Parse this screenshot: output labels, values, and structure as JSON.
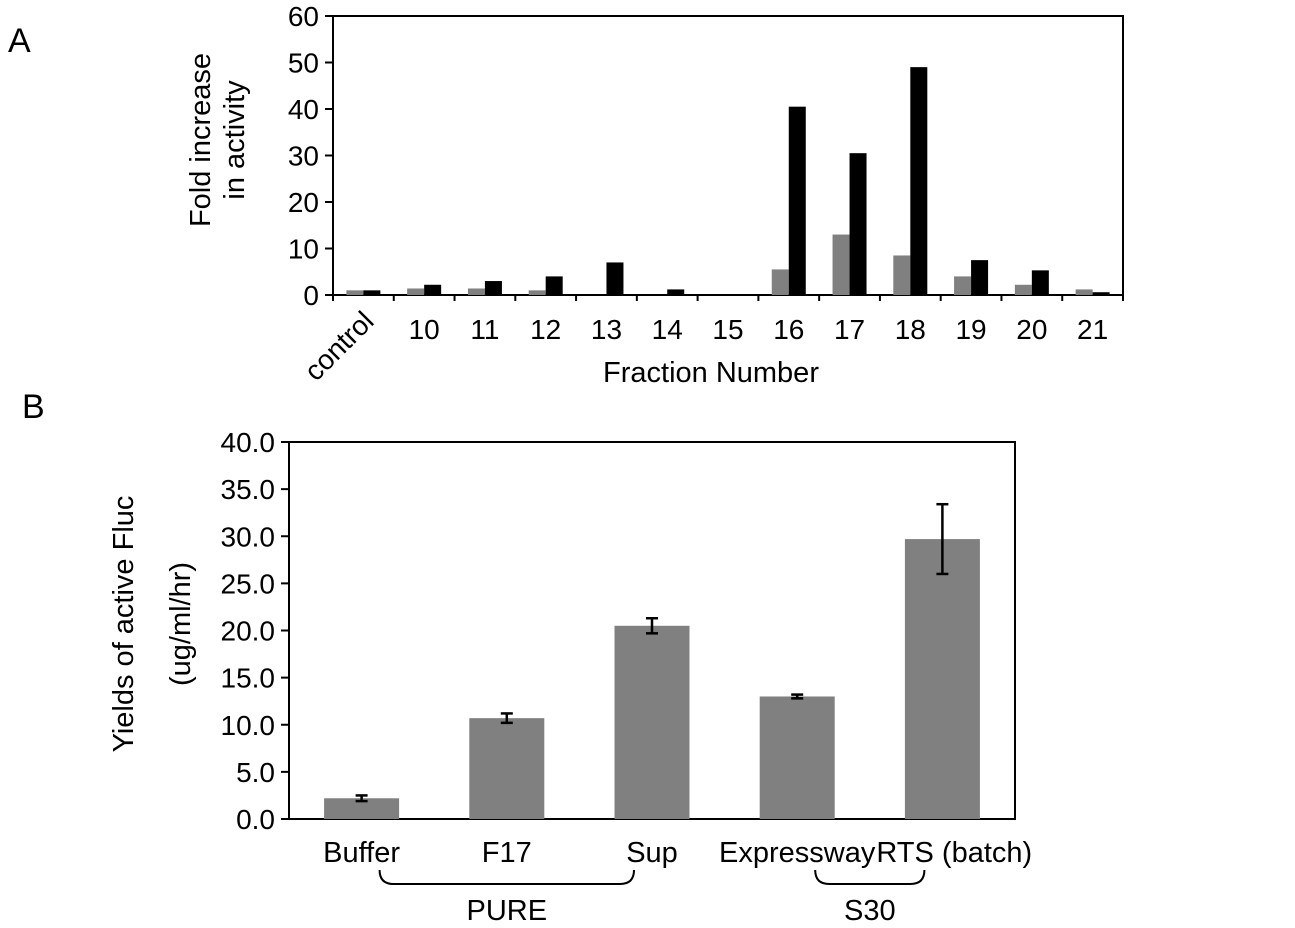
{
  "panel_labels": {
    "a": "A",
    "b": "B"
  },
  "chart_data": [
    {
      "type": "bar",
      "panel": "A",
      "title": "",
      "ylabel_line1": "Fold increase",
      "ylabel_line2": "in activity",
      "xlabel": "Fraction Number",
      "ylim": [
        0,
        60
      ],
      "yticks": [
        "0",
        "10",
        "20",
        "30",
        "40",
        "50",
        "60"
      ],
      "categories": [
        "control",
        "10",
        "11",
        "12",
        "13",
        "14",
        "15",
        "16",
        "17",
        "18",
        "19",
        "20",
        "21"
      ],
      "series": [
        {
          "color": "#808080",
          "values": [
            1,
            1.4,
            1.4,
            1,
            0,
            0,
            0,
            5.5,
            13,
            8.5,
            4,
            2.2,
            1.2
          ]
        },
        {
          "color": "#000000",
          "values": [
            1,
            2.2,
            3,
            4,
            7,
            1.2,
            0,
            40.5,
            30.5,
            49,
            7.5,
            5.3,
            0.6
          ]
        }
      ],
      "grid": false
    },
    {
      "type": "bar",
      "panel": "B",
      "title": "",
      "ylabel_line1": "Yields of active Fluc",
      "ylabel_line2": "(ug/ml/hr)",
      "xlabel": "",
      "ylim": [
        0,
        40
      ],
      "yticks": [
        "0.0",
        "5.0",
        "10.0",
        "15.0",
        "20.0",
        "25.0",
        "30.0",
        "35.0",
        "40.0"
      ],
      "categories": [
        "Buffer",
        "F17",
        "Sup",
        "Expressway",
        "RTS (batch)"
      ],
      "values": [
        2.2,
        10.7,
        20.5,
        13.0,
        29.7
      ],
      "errors": [
        0.3,
        0.5,
        0.8,
        0.2,
        3.7
      ],
      "bar_color": "#808080",
      "groups": [
        {
          "label": "PURE",
          "members": [
            "Buffer",
            "F17",
            "Sup"
          ]
        },
        {
          "label": "S30",
          "members": [
            "Expressway",
            "RTS (batch)"
          ]
        }
      ],
      "grid": false
    }
  ]
}
